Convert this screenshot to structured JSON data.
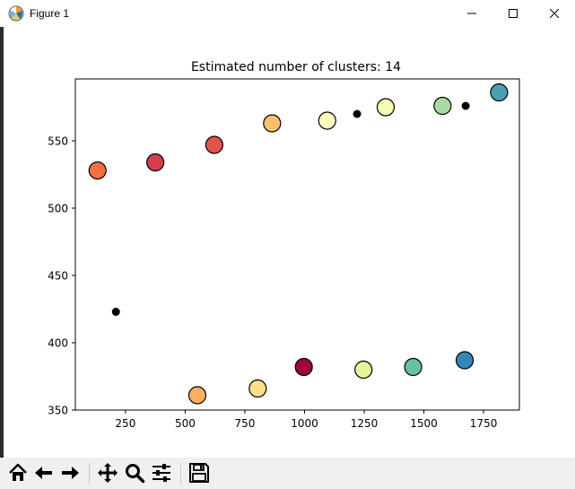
{
  "window": {
    "title": "Figure 1"
  },
  "chart_data": {
    "type": "scatter",
    "title": "Estimated number of clusters: 14",
    "xlabel": "",
    "ylabel": "",
    "xlim": [
      40,
      1900
    ],
    "ylim": [
      350,
      596
    ],
    "xticks": [
      250,
      500,
      750,
      1000,
      1250,
      1500,
      1750
    ],
    "yticks": [
      350,
      400,
      450,
      500,
      550
    ],
    "grid": false,
    "cluster_points": [
      {
        "x": 133,
        "y": 528,
        "color": "#f46d43"
      },
      {
        "x": 375,
        "y": 534,
        "color": "#d53e4f"
      },
      {
        "x": 622,
        "y": 547,
        "color": "#e4534b"
      },
      {
        "x": 864,
        "y": 563,
        "color": "#fdbf6f"
      },
      {
        "x": 1095,
        "y": 565,
        "color": "#ffffbf"
      },
      {
        "x": 1340,
        "y": 575,
        "color": "#f5fbb0"
      },
      {
        "x": 1578,
        "y": 576,
        "color": "#a6dba4"
      },
      {
        "x": 1815,
        "y": 586,
        "color": "#4a9fb3"
      },
      {
        "x": 551,
        "y": 361,
        "color": "#fdae61"
      },
      {
        "x": 804,
        "y": 366,
        "color": "#fee08b"
      },
      {
        "x": 997,
        "y": 382,
        "color": "#9e0142"
      },
      {
        "x": 1247,
        "y": 380,
        "color": "#e6f598"
      },
      {
        "x": 1455,
        "y": 382,
        "color": "#66c2a5"
      },
      {
        "x": 1671,
        "y": 387,
        "color": "#3288bd"
      }
    ],
    "noise_points": [
      {
        "x": 210,
        "y": 423
      },
      {
        "x": 1220,
        "y": 570
      },
      {
        "x": 1675,
        "y": 576
      }
    ]
  },
  "toolbar": {
    "buttons": [
      {
        "name": "home-button",
        "icon": "home-icon"
      },
      {
        "name": "back-button",
        "icon": "arrow-left-icon"
      },
      {
        "name": "forward-button",
        "icon": "arrow-right-icon"
      },
      {
        "name": "pan-button",
        "icon": "move-icon"
      },
      {
        "name": "zoom-button",
        "icon": "magnifier-icon"
      },
      {
        "name": "configure-subplots-button",
        "icon": "sliders-icon"
      },
      {
        "name": "save-button",
        "icon": "floppy-disk-icon"
      }
    ]
  }
}
